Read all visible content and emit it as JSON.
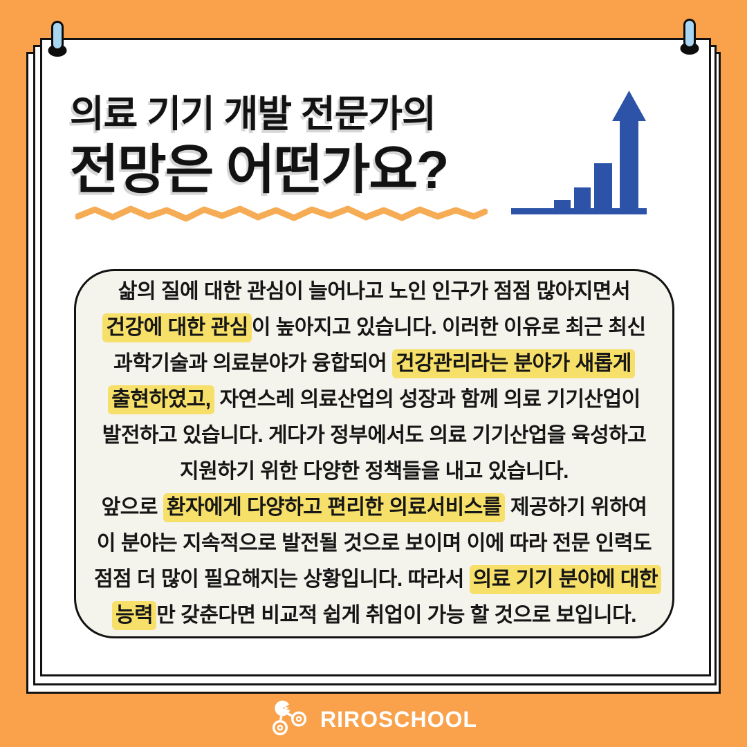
{
  "title": {
    "line1": "의료 기기 개발 전문가의",
    "line2": "전망은 어떤가요?"
  },
  "body": {
    "lines": [
      {
        "segments": [
          {
            "t": "삶의 질에 대한 관심이 늘어나고 노인 인구가 점점 많아지면서",
            "hl": false
          }
        ]
      },
      {
        "segments": [
          {
            "t": "건강에 대한 관심",
            "hl": true
          },
          {
            "t": "이 높아지고 있습니다. 이러한 이유로 최근 최신",
            "hl": false
          }
        ]
      },
      {
        "segments": [
          {
            "t": "과학기술과 의료분야가 융합되어 ",
            "hl": false
          },
          {
            "t": "건강관리라는 분야가 새롭게",
            "hl": true
          }
        ]
      },
      {
        "segments": [
          {
            "t": "출현하였고,",
            "hl": true
          },
          {
            "t": " 자연스레 의료산업의 성장과 함께 의료 기기산업이",
            "hl": false
          }
        ]
      },
      {
        "segments": [
          {
            "t": "발전하고 있습니다. 게다가 정부에서도 의료 기기산업을 육성하고",
            "hl": false
          }
        ]
      },
      {
        "segments": [
          {
            "t": "지원하기 위한 다양한 정책들을 내고 있습니다.",
            "hl": false
          }
        ]
      },
      {
        "segments": [
          {
            "t": "앞으로 ",
            "hl": false
          },
          {
            "t": "환자에게 다양하고 편리한 의료서비스를",
            "hl": true
          },
          {
            "t": " 제공하기 위하여",
            "hl": false
          }
        ]
      },
      {
        "segments": [
          {
            "t": "이 분야는 지속적으로 발전될 것으로 보이며 이에 따라 전문 인력도",
            "hl": false
          }
        ]
      },
      {
        "segments": [
          {
            "t": "점점 더 많이 필요해지는 상황입니다. 따라서 ",
            "hl": false
          },
          {
            "t": "의료 기기 분야에 대한",
            "hl": true
          }
        ]
      },
      {
        "segments": [
          {
            "t": "능력",
            "hl": true
          },
          {
            "t": "만 갖춘다면 비교적 쉽게 취업이 가능 할 것으로 보입니다.",
            "hl": false
          }
        ]
      }
    ]
  },
  "footer": {
    "brand": "RIROSCHOOL"
  },
  "icons": {
    "chart": "bar-chart-growth-icon",
    "pins": "push-pin-icon",
    "logo": "riroschool-logo-icon",
    "underline": "wavy-underline"
  },
  "colors": {
    "background_orange": "#F9A24B",
    "chart_blue": "#2D53A8",
    "highlight_yellow": "#F7E06A",
    "box_cream": "#F4F3EC",
    "pin_blue": "#A9D7F3",
    "ink_black": "#121212",
    "card_white": "#FFFFFF",
    "wave_orange": "#F6AC55"
  }
}
